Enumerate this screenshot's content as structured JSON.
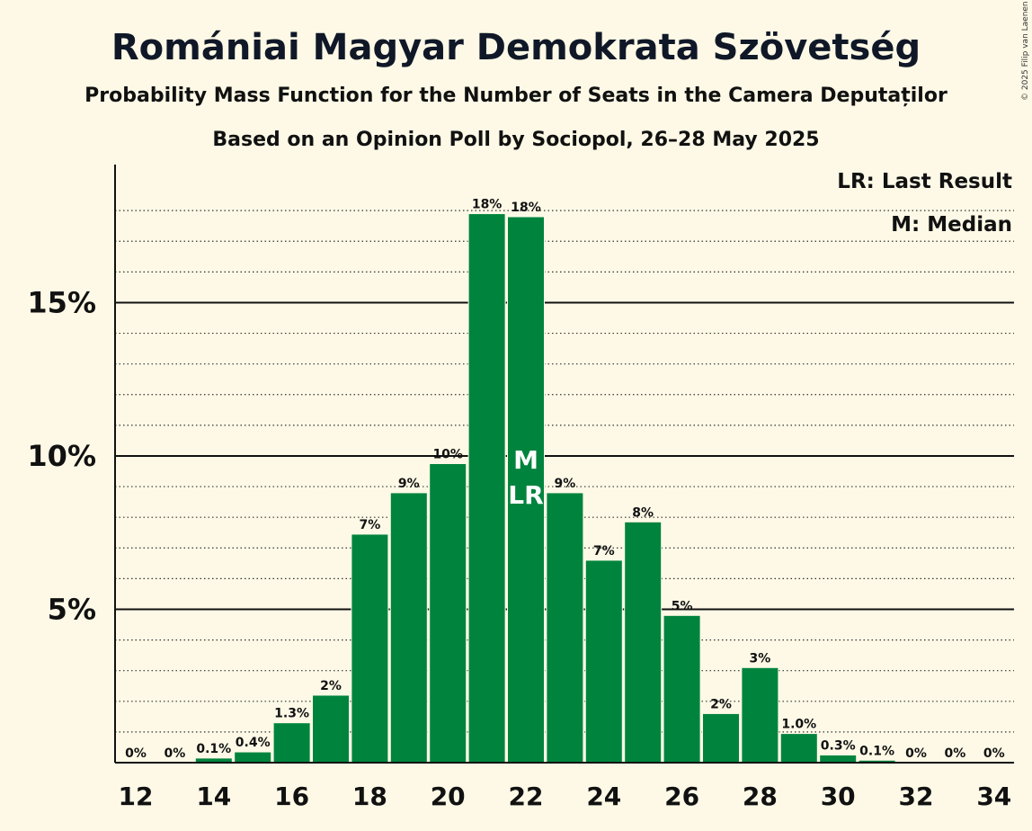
{
  "chart_data": {
    "type": "bar",
    "title": "Romániai Magyar Demokrata Szövetség",
    "subtitle": "Probability Mass Function for the Number of Seats in the Camera Deputaților",
    "subtitle2": "Based on an Opinion Poll by Sociopol, 26–28 May 2025",
    "copyright": "© 2025 Filip van Laenen",
    "legend": {
      "last_result": "LR: Last Result",
      "median": "M: Median"
    },
    "ylim": [
      0,
      19.5
    ],
    "yticks": [
      {
        "value": 5,
        "label": "5%"
      },
      {
        "value": 10,
        "label": "10%"
      },
      {
        "value": 15,
        "label": "15%"
      }
    ],
    "xticks": [
      "12",
      "14",
      "16",
      "18",
      "20",
      "22",
      "24",
      "26",
      "28",
      "30",
      "32",
      "34"
    ],
    "categories": [
      12,
      13,
      14,
      15,
      16,
      17,
      18,
      19,
      20,
      21,
      22,
      23,
      24,
      25,
      26,
      27,
      28,
      29,
      30,
      31,
      32,
      33,
      34
    ],
    "values": [
      0,
      0,
      0.15,
      0.35,
      1.3,
      2.2,
      7.45,
      8.8,
      9.75,
      17.9,
      17.8,
      8.8,
      6.6,
      7.85,
      4.8,
      1.6,
      3.1,
      0.95,
      0.25,
      0.08,
      0,
      0,
      0
    ],
    "labels": [
      "0%",
      "0%",
      "0.1%",
      "0.4%",
      "1.3%",
      "2%",
      "7%",
      "9%",
      "10%",
      "18%",
      "18%",
      "9%",
      "7%",
      "8%",
      "5%",
      "2%",
      "3%",
      "1.0%",
      "0.3%",
      "0.1%",
      "0%",
      "0%",
      "0%"
    ],
    "median_seat": 22,
    "last_result_seat": 22,
    "markers": {
      "median": "M",
      "last_result": "LR"
    },
    "bar_color": "#00843d"
  }
}
